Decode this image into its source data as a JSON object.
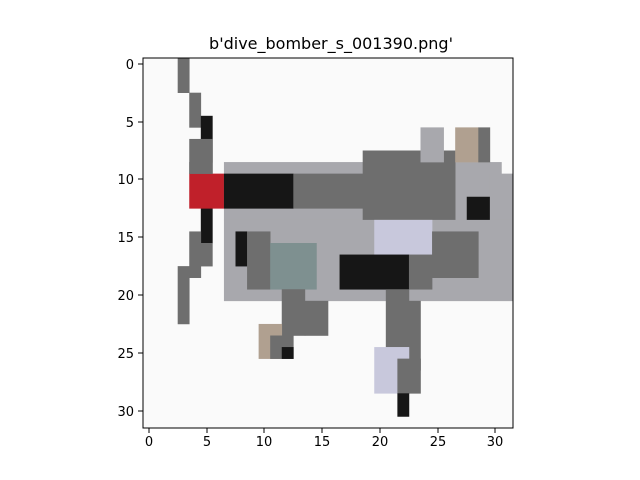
{
  "figure": {
    "title": "b'dive_bomber_s_001390.png'"
  },
  "image": {
    "subject": "pixelated dive bomber aircraft",
    "grid_size": [
      32,
      32
    ],
    "palette": {
      "background": "#fafafa",
      "dark": "#161616",
      "gray": "#6e6e6e",
      "light_gray": "#a8a8ad",
      "lavender": "#c8c8dc",
      "red": "#c0202a",
      "teal_gray": "#7e9090",
      "tan": "#b0a090"
    }
  },
  "axes": {
    "x_ticks": [
      "0",
      "5",
      "10",
      "15",
      "20",
      "25",
      "30"
    ],
    "y_ticks": [
      "0",
      "5",
      "10",
      "15",
      "20",
      "25",
      "30"
    ],
    "x_range": [
      -0.5,
      31.5
    ],
    "y_range": [
      31.5,
      -0.5
    ]
  }
}
